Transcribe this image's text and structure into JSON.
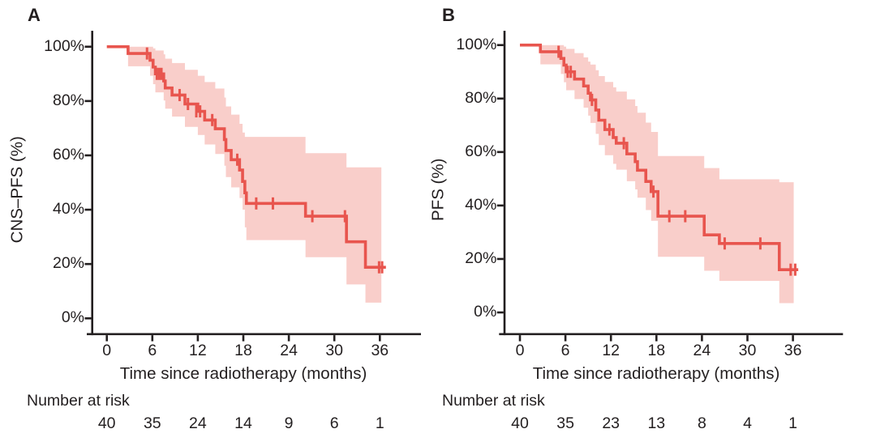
{
  "figure": {
    "colors": {
      "line": "#E8554E",
      "band": "#F9CECA",
      "axis": "#231F20",
      "text": "#231F20",
      "background": "#FFFFFF"
    },
    "panels": [
      {
        "label": "A",
        "y_axis_label": "CNS–PFS (%)",
        "x_axis_label": "Time since radiotherapy (months)",
        "risk_label": "Number at risk",
        "y_ticks": [
          "100%",
          "80%",
          "60%",
          "40%",
          "20%",
          "0%"
        ],
        "x_ticks": [
          "0",
          "6",
          "12",
          "18",
          "24",
          "30",
          "36"
        ],
        "risk_numbers": [
          "40",
          "35",
          "24",
          "14",
          "9",
          "6",
          "1"
        ]
      },
      {
        "label": "B",
        "y_axis_label": "PFS (%)",
        "x_axis_label": "Time since radiotherapy (months)",
        "risk_label": "Number at risk",
        "y_ticks": [
          "100%",
          "80%",
          "60%",
          "40%",
          "20%",
          "0%"
        ],
        "x_ticks": [
          "0",
          "6",
          "12",
          "18",
          "24",
          "30",
          "36"
        ],
        "risk_numbers": [
          "40",
          "35",
          "23",
          "13",
          "8",
          "4",
          "1"
        ]
      }
    ]
  },
  "chart_data": [
    {
      "type": "line",
      "subtype": "kaplan-meier-step-with-ci-band",
      "title": "A",
      "ylabel": "CNS–PFS (%)",
      "xlabel": "Time since radiotherapy (months)",
      "xlim": [
        0,
        38
      ],
      "ylim": [
        0,
        100
      ],
      "grid": false,
      "legend": false,
      "x_ticks": [
        0,
        6,
        12,
        18,
        24,
        30,
        36
      ],
      "y_ticks_pct": [
        100,
        80,
        60,
        40,
        20,
        0
      ],
      "steps_pct": [
        [
          0,
          100
        ],
        [
          2.8,
          97.5
        ],
        [
          5.7,
          95.0
        ],
        [
          6.1,
          92.5
        ],
        [
          6.4,
          90.0
        ],
        [
          7.5,
          87.4
        ],
        [
          7.7,
          84.8
        ],
        [
          8.6,
          82.2
        ],
        [
          10.3,
          78.9
        ],
        [
          12.0,
          76.2
        ],
        [
          12.9,
          73.0
        ],
        [
          14.3,
          69.8
        ],
        [
          15.5,
          65.8
        ],
        [
          15.7,
          61.8
        ],
        [
          16.4,
          58.4
        ],
        [
          17.5,
          54.6
        ],
        [
          17.9,
          50.4
        ],
        [
          18.2,
          46.2
        ],
        [
          18.4,
          42.3
        ],
        [
          26.2,
          37.6
        ],
        [
          31.6,
          28.2
        ],
        [
          34.1,
          18.8
        ]
      ],
      "curve_end_month": 36.8,
      "censor_marks_pct": [
        [
          5.3,
          97.5
        ],
        [
          6.6,
          90.0
        ],
        [
          6.9,
          90.0
        ],
        [
          7.2,
          90.0
        ],
        [
          9.6,
          82.2
        ],
        [
          10.7,
          78.9
        ],
        [
          11.8,
          76.2
        ],
        [
          12.3,
          76.2
        ],
        [
          13.9,
          73.0
        ],
        [
          17.2,
          58.4
        ],
        [
          19.7,
          42.3
        ],
        [
          21.9,
          42.3
        ],
        [
          27.1,
          37.6
        ],
        [
          31.4,
          37.6
        ],
        [
          35.9,
          18.8
        ],
        [
          36.3,
          18.8
        ]
      ],
      "ci_band_pct": [
        [
          2.8,
          100,
          92.8
        ],
        [
          5.7,
          100,
          89.3
        ],
        [
          6.1,
          99.4,
          86.2
        ],
        [
          6.4,
          98.6,
          83.2
        ],
        [
          7.5,
          97.2,
          80.2
        ],
        [
          7.7,
          95.6,
          77.2
        ],
        [
          8.6,
          94.0,
          74.3
        ],
        [
          10.3,
          91.5,
          70.5
        ],
        [
          12.0,
          89.3,
          67.5
        ],
        [
          12.9,
          87.0,
          64.0
        ],
        [
          14.3,
          84.6,
          60.5
        ],
        [
          15.5,
          81.3,
          56.2
        ],
        [
          15.7,
          78.0,
          52.0
        ],
        [
          16.4,
          75.0,
          48.2
        ],
        [
          17.5,
          71.6,
          44.3
        ],
        [
          17.9,
          68.4,
          40.0
        ],
        [
          18.2,
          66.8,
          33.5
        ],
        [
          18.4,
          66.8,
          28.8
        ],
        [
          26.2,
          60.8,
          22.5
        ],
        [
          31.6,
          55.6,
          12.5
        ],
        [
          34.1,
          55.6,
          5.8
        ]
      ],
      "band_end_month": 36.2,
      "number_at_risk": {
        "times": [
          0,
          6,
          12,
          18,
          24,
          30,
          36
        ],
        "counts": [
          40,
          35,
          24,
          14,
          9,
          6,
          1
        ]
      }
    },
    {
      "type": "line",
      "subtype": "kaplan-meier-step-with-ci-band",
      "title": "B",
      "ylabel": "PFS (%)",
      "xlabel": "Time since radiotherapy (months)",
      "xlim": [
        0,
        38
      ],
      "ylim": [
        0,
        100
      ],
      "grid": false,
      "legend": false,
      "x_ticks": [
        0,
        6,
        12,
        18,
        24,
        30,
        36
      ],
      "y_ticks_pct": [
        100,
        80,
        60,
        40,
        20,
        0
      ],
      "steps_pct": [
        [
          0,
          100
        ],
        [
          2.7,
          97.5
        ],
        [
          5.4,
          95.0
        ],
        [
          5.8,
          92.5
        ],
        [
          6.1,
          90.0
        ],
        [
          7.2,
          87.3
        ],
        [
          8.4,
          84.7
        ],
        [
          9.0,
          82.0
        ],
        [
          9.3,
          79.5
        ],
        [
          10.0,
          75.7
        ],
        [
          10.4,
          71.9
        ],
        [
          11.2,
          68.4
        ],
        [
          12.3,
          65.4
        ],
        [
          12.7,
          63.3
        ],
        [
          14.1,
          59.3
        ],
        [
          15.2,
          56.4
        ],
        [
          15.5,
          53.2
        ],
        [
          16.6,
          49.0
        ],
        [
          17.3,
          45.2
        ],
        [
          18.2,
          36.0
        ],
        [
          24.3,
          29.0
        ],
        [
          26.3,
          25.8
        ],
        [
          34.2,
          16.0
        ]
      ],
      "curve_end_month": 36.7,
      "censor_marks_pct": [
        [
          5.1,
          97.5
        ],
        [
          6.3,
          90.0
        ],
        [
          6.7,
          90.0
        ],
        [
          9.5,
          79.5
        ],
        [
          11.8,
          68.4
        ],
        [
          13.7,
          63.3
        ],
        [
          17.6,
          45.2
        ],
        [
          19.7,
          36.0
        ],
        [
          21.8,
          36.0
        ],
        [
          27.0,
          25.8
        ],
        [
          31.7,
          25.8
        ],
        [
          35.7,
          16.0
        ],
        [
          36.3,
          16.0
        ]
      ],
      "ci_band_pct": [
        [
          2.7,
          100,
          92.8
        ],
        [
          5.4,
          100,
          89.2
        ],
        [
          5.8,
          99.4,
          86.1
        ],
        [
          6.1,
          98.6,
          83.1
        ],
        [
          7.2,
          97.0,
          79.8
        ],
        [
          8.4,
          95.4,
          76.6
        ],
        [
          9.0,
          93.8,
          73.6
        ],
        [
          9.3,
          92.7,
          70.9
        ],
        [
          10.0,
          90.6,
          66.8
        ],
        [
          10.4,
          88.4,
          62.6
        ],
        [
          11.2,
          86.2,
          58.8
        ],
        [
          12.3,
          84.2,
          55.6
        ],
        [
          12.7,
          82.6,
          53.4
        ],
        [
          14.1,
          79.7,
          49.1
        ],
        [
          15.2,
          77.2,
          46.0
        ],
        [
          15.5,
          74.7,
          42.9
        ],
        [
          16.6,
          71.0,
          38.3
        ],
        [
          17.3,
          67.5,
          34.3
        ],
        [
          18.2,
          58.5,
          20.8
        ],
        [
          24.3,
          54.0,
          15.6
        ],
        [
          26.3,
          49.8,
          11.8
        ],
        [
          34.2,
          48.7,
          3.5
        ]
      ],
      "band_end_month": 36.1,
      "number_at_risk": {
        "times": [
          0,
          6,
          12,
          18,
          24,
          30,
          36
        ],
        "counts": [
          40,
          35,
          23,
          13,
          8,
          4,
          1
        ]
      }
    }
  ]
}
